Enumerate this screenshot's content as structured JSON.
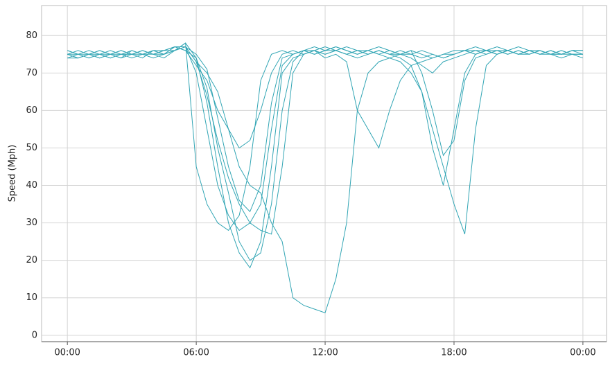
{
  "chart_data": {
    "type": "line",
    "y_label": "Speed (Mph)",
    "x": [
      0,
      0.5,
      1,
      1.5,
      2,
      2.5,
      3,
      3.5,
      4,
      4.5,
      5,
      5.5,
      6,
      6.5,
      7,
      7.5,
      8,
      8.5,
      9,
      9.5,
      10,
      10.5,
      11,
      11.5,
      12,
      12.5,
      13,
      13.5,
      14,
      14.5,
      15,
      15.5,
      16,
      16.5,
      17,
      17.5,
      18,
      18.5,
      19,
      19.5,
      20,
      20.5,
      21,
      21.5,
      22,
      22.5,
      23,
      23.5,
      24
    ],
    "xlim": [
      -1.2,
      25.1
    ],
    "xticks": [
      {
        "value": 0,
        "label": "00:00"
      },
      {
        "value": 6,
        "label": "06:00"
      },
      {
        "value": 12,
        "label": "12:00"
      },
      {
        "value": 18,
        "label": "18:00"
      },
      {
        "value": 24,
        "label": "00:00"
      }
    ],
    "ylim": [
      -1.7,
      88
    ],
    "yticks": [
      0,
      10,
      20,
      30,
      40,
      50,
      60,
      70,
      80
    ],
    "grid": true,
    "series": [
      {
        "color": "#31a5b4",
        "values": [
          75,
          74,
          75,
          75,
          74,
          75,
          75,
          76,
          75,
          76,
          77,
          77,
          70,
          55,
          40,
          32,
          28,
          30,
          35,
          55,
          72,
          75,
          76,
          76,
          77,
          76,
          77,
          76,
          76,
          75,
          76,
          75,
          74,
          72,
          70,
          73,
          74,
          75,
          76,
          76,
          76,
          76,
          75,
          76,
          75,
          75,
          75,
          75,
          75
        ]
      },
      {
        "color": "#31a5b4",
        "values": [
          76,
          75,
          74,
          75,
          76,
          75,
          74,
          75,
          76,
          76,
          76,
          78,
          74,
          66,
          50,
          38,
          25,
          20,
          22,
          35,
          60,
          73,
          76,
          77,
          76,
          77,
          76,
          75,
          76,
          77,
          76,
          75,
          76,
          75,
          74,
          75,
          76,
          76,
          77,
          76,
          75,
          76,
          77,
          76,
          75,
          76,
          75,
          76,
          75
        ]
      },
      {
        "color": "#31a5b4",
        "values": [
          74,
          75,
          75,
          74,
          75,
          76,
          75,
          75,
          74,
          75,
          76,
          77,
          73,
          70,
          65,
          55,
          45,
          40,
          38,
          30,
          25,
          10,
          8,
          7,
          6,
          15,
          30,
          60,
          70,
          73,
          74,
          75,
          75,
          74,
          75,
          74,
          75,
          76,
          76,
          75,
          76,
          75,
          76,
          75,
          76,
          75,
          74,
          75,
          75
        ]
      },
      {
        "color": "#31a5b4",
        "values": [
          75,
          76,
          75,
          74,
          75,
          75,
          76,
          75,
          76,
          75,
          77,
          76,
          72,
          68,
          60,
          55,
          50,
          52,
          60,
          70,
          75,
          76,
          75,
          76,
          75,
          76,
          75,
          76,
          75,
          76,
          75,
          74,
          72,
          65,
          50,
          40,
          55,
          70,
          75,
          76,
          75,
          76,
          75,
          76,
          75,
          76,
          75,
          76,
          76
        ]
      },
      {
        "color": "#31a5b4",
        "values": [
          74,
          74,
          75,
          76,
          75,
          74,
          75,
          76,
          75,
          74,
          76,
          77,
          75,
          71,
          58,
          45,
          36,
          33,
          40,
          62,
          74,
          75,
          76,
          75,
          76,
          77,
          76,
          75,
          76,
          75,
          74,
          73,
          70,
          65,
          55,
          45,
          35,
          27,
          55,
          72,
          75,
          76,
          75,
          76,
          76,
          75,
          76,
          75,
          74
        ]
      },
      {
        "color": "#31a5b4",
        "values": [
          75,
          75,
          76,
          75,
          74,
          75,
          75,
          74,
          76,
          75,
          76,
          78,
          45,
          35,
          30,
          28,
          32,
          45,
          68,
          75,
          76,
          75,
          76,
          75,
          76,
          76,
          75,
          76,
          75,
          76,
          75,
          76,
          75,
          76,
          75,
          74,
          75,
          76,
          75,
          76,
          77,
          76,
          75,
          76,
          75,
          76,
          75,
          76,
          76
        ]
      },
      {
        "color": "#31a5b4",
        "values": [
          76,
          75,
          74,
          75,
          75,
          76,
          75,
          76,
          75,
          75,
          77,
          76,
          74,
          62,
          45,
          30,
          22,
          18,
          25,
          45,
          70,
          74,
          75,
          76,
          74,
          75,
          73,
          60,
          55,
          50,
          60,
          68,
          72,
          73,
          74,
          75,
          75,
          76,
          75,
          76,
          75,
          76,
          75,
          75,
          76,
          75,
          76,
          75,
          75
        ]
      },
      {
        "color": "#31a5b4",
        "values": [
          75,
          74,
          75,
          76,
          75,
          74,
          76,
          75,
          75,
          76,
          77,
          77,
          73,
          64,
          52,
          42,
          35,
          30,
          28,
          27,
          45,
          70,
          75,
          76,
          75,
          76,
          75,
          74,
          75,
          76,
          75,
          75,
          76,
          70,
          60,
          48,
          52,
          68,
          74,
          75,
          76,
          75,
          76,
          75,
          76,
          75,
          75,
          76,
          76
        ]
      }
    ]
  }
}
